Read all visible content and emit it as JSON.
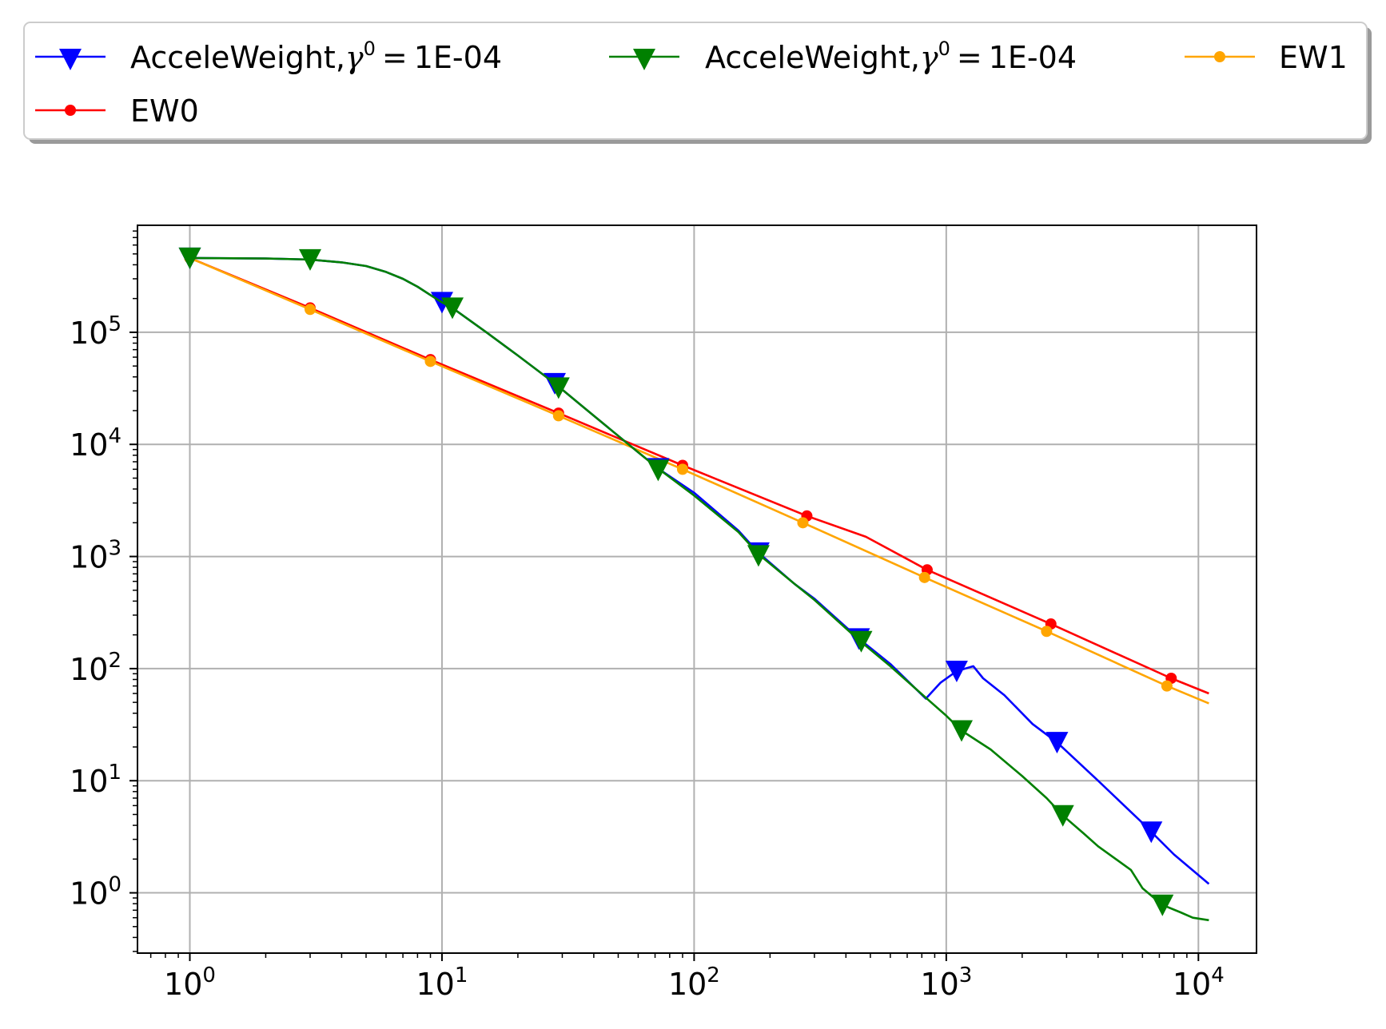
{
  "chart_data": {
    "type": "line",
    "title": "",
    "xlabel": "",
    "ylabel": "",
    "xscale": "log",
    "yscale": "log",
    "xlim": [
      0.62,
      17000
    ],
    "ylim": [
      0.29,
      900000
    ],
    "grid": true,
    "legend": {
      "placement": "above-plot",
      "columns": 3,
      "shadow": true
    },
    "x_ticks": [
      {
        "value": 1,
        "base": "10",
        "exp": "0"
      },
      {
        "value": 10,
        "base": "10",
        "exp": "1"
      },
      {
        "value": 100,
        "base": "10",
        "exp": "2"
      },
      {
        "value": 1000,
        "base": "10",
        "exp": "3"
      },
      {
        "value": 10000,
        "base": "10",
        "exp": "4"
      }
    ],
    "y_ticks": [
      {
        "value": 1,
        "base": "10",
        "exp": "0"
      },
      {
        "value": 10,
        "base": "10",
        "exp": "1"
      },
      {
        "value": 100,
        "base": "10",
        "exp": "2"
      },
      {
        "value": 1000,
        "base": "10",
        "exp": "3"
      },
      {
        "value": 10000,
        "base": "10",
        "exp": "4"
      },
      {
        "value": 100000,
        "base": "10",
        "exp": "5"
      }
    ],
    "series": [
      {
        "name_text": "AcceleWeight,",
        "name_symbol": "γ",
        "name_sup": "0",
        "name_eq": "=",
        "name_value": "1E-04",
        "color": "#0000ff",
        "marker": "triangle-down",
        "points": [
          [
            1,
            460000
          ],
          [
            2,
            455000
          ],
          [
            3,
            445000
          ],
          [
            4,
            420000
          ],
          [
            5,
            390000
          ],
          [
            6,
            345000
          ],
          [
            7,
            300000
          ],
          [
            8,
            255000
          ],
          [
            9,
            215000
          ],
          [
            10,
            185000
          ],
          [
            11,
            165000
          ],
          [
            15,
            100000
          ],
          [
            20,
            62000
          ],
          [
            28,
            35000
          ],
          [
            40,
            18000
          ],
          [
            60,
            8500
          ],
          [
            72,
            6100
          ],
          [
            100,
            3700
          ],
          [
            150,
            1700
          ],
          [
            180,
            1080
          ],
          [
            250,
            570
          ],
          [
            300,
            420
          ],
          [
            450,
            185
          ],
          [
            600,
            110
          ],
          [
            830,
            54
          ],
          [
            950,
            75
          ],
          [
            1100,
            95
          ],
          [
            1280,
            105
          ],
          [
            1400,
            82
          ],
          [
            1700,
            58
          ],
          [
            2200,
            32
          ],
          [
            2750,
            22
          ],
          [
            4000,
            10
          ],
          [
            6000,
            4.2
          ],
          [
            6500,
            3.5
          ],
          [
            8000,
            2.2
          ],
          [
            11000,
            1.2
          ]
        ],
        "marker_points": [
          [
            1,
            460000
          ],
          [
            10,
            185000
          ],
          [
            28,
            35000
          ],
          [
            72,
            6100
          ],
          [
            180,
            1080
          ],
          [
            450,
            185
          ],
          [
            1100,
            95
          ],
          [
            2750,
            22
          ],
          [
            6500,
            3.5
          ]
        ]
      },
      {
        "name_text": "AcceleWeight,",
        "name_symbol": "γ",
        "name_sup": "0",
        "name_eq": "=",
        "name_value": "1E-04",
        "color": "#008000",
        "marker": "triangle-down",
        "points": [
          [
            1,
            460000
          ],
          [
            2,
            455000
          ],
          [
            3,
            445000
          ],
          [
            4,
            420000
          ],
          [
            5,
            390000
          ],
          [
            6,
            345000
          ],
          [
            7,
            300000
          ],
          [
            8,
            255000
          ],
          [
            9,
            215000
          ],
          [
            10,
            185000
          ],
          [
            11,
            165000
          ],
          [
            15,
            100000
          ],
          [
            20,
            62000
          ],
          [
            28,
            35000
          ],
          [
            40,
            18000
          ],
          [
            60,
            8500
          ],
          [
            72,
            6100
          ],
          [
            100,
            3500
          ],
          [
            150,
            1650
          ],
          [
            180,
            1050
          ],
          [
            250,
            570
          ],
          [
            300,
            410
          ],
          [
            450,
            180
          ],
          [
            600,
            105
          ],
          [
            830,
            55
          ],
          [
            1000,
            38
          ],
          [
            1150,
            28
          ],
          [
            1500,
            19
          ],
          [
            2000,
            11
          ],
          [
            2500,
            7
          ],
          [
            2900,
            4.9
          ],
          [
            3500,
            3.4
          ],
          [
            4000,
            2.6
          ],
          [
            5400,
            1.6
          ],
          [
            6000,
            1.1
          ],
          [
            7200,
            0.78
          ],
          [
            8500,
            0.67
          ],
          [
            9500,
            0.6
          ],
          [
            11000,
            0.57
          ]
        ],
        "marker_points": [
          [
            1,
            460000
          ],
          [
            3,
            445000
          ],
          [
            11,
            165000
          ],
          [
            29,
            32000
          ],
          [
            72,
            5900
          ],
          [
            180,
            1020
          ],
          [
            460,
            175
          ],
          [
            1150,
            28
          ],
          [
            2900,
            4.9
          ],
          [
            7200,
            0.78
          ]
        ]
      },
      {
        "name_text": "EW0",
        "color": "#ff0000",
        "marker": "circle",
        "points": [
          [
            1,
            460000
          ],
          [
            3,
            165000
          ],
          [
            9,
            57000
          ],
          [
            29,
            19000
          ],
          [
            90,
            6500
          ],
          [
            280,
            2300
          ],
          [
            480,
            1500
          ],
          [
            840,
            760
          ],
          [
            2600,
            250
          ],
          [
            7800,
            82
          ],
          [
            11000,
            60
          ]
        ],
        "marker_points": [
          [
            1,
            460000
          ],
          [
            3,
            165000
          ],
          [
            9,
            57000
          ],
          [
            29,
            19000
          ],
          [
            90,
            6500
          ],
          [
            280,
            2300
          ],
          [
            840,
            760
          ],
          [
            2600,
            250
          ],
          [
            7800,
            82
          ]
        ]
      },
      {
        "name_text": "EW1",
        "color": "#ffa500",
        "marker": "circle",
        "points": [
          [
            1,
            460000
          ],
          [
            3,
            160000
          ],
          [
            9,
            55000
          ],
          [
            29,
            18000
          ],
          [
            90,
            6000
          ],
          [
            270,
            2000
          ],
          [
            820,
            650
          ],
          [
            2500,
            215
          ],
          [
            7500,
            70
          ],
          [
            11000,
            49
          ]
        ],
        "marker_points": [
          [
            1,
            460000
          ],
          [
            3,
            160000
          ],
          [
            9,
            55000
          ],
          [
            29,
            18000
          ],
          [
            90,
            6000
          ],
          [
            270,
            2000
          ],
          [
            820,
            650
          ],
          [
            2500,
            215
          ],
          [
            7500,
            70
          ]
        ]
      }
    ]
  }
}
